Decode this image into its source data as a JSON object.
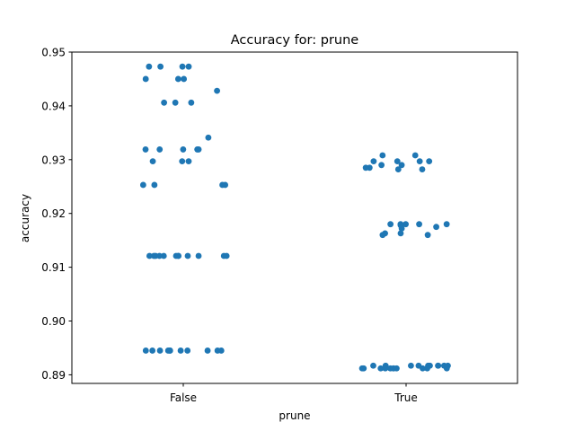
{
  "chart_data": {
    "type": "scatter",
    "title": "Accuracy for: prune",
    "xlabel": "prune",
    "ylabel": "accuracy",
    "categories": [
      "False",
      "True"
    ],
    "ylim": [
      0.8884,
      0.95
    ],
    "yticks": [
      0.89,
      0.9,
      0.91,
      0.92,
      0.93,
      0.94,
      0.95
    ],
    "ytick_labels": [
      "0.89",
      "0.90",
      "0.91",
      "0.92",
      "0.93",
      "0.94",
      "0.95"
    ],
    "grid": false,
    "marker_color": "#1f77b4",
    "series": [
      {
        "category": "False",
        "values": [
          0.9473,
          0.9473,
          0.9473,
          0.9473,
          0.945,
          0.945,
          0.945,
          0.9428,
          0.9406,
          0.9406,
          0.9406,
          0.9341,
          0.9319,
          0.9319,
          0.9319,
          0.9319,
          0.9319,
          0.9297,
          0.9297,
          0.9297,
          0.9253,
          0.9253,
          0.9253,
          0.9253,
          0.9121,
          0.9121,
          0.9121,
          0.9121,
          0.9121,
          0.9121,
          0.9121,
          0.9121,
          0.9121,
          0.9121,
          0.9121,
          0.9121,
          0.8945,
          0.8945,
          0.8945,
          0.8945,
          0.8945,
          0.8945,
          0.8945,
          0.8945,
          0.8945,
          0.8945,
          0.8945
        ]
      },
      {
        "category": "True",
        "values": [
          0.9308,
          0.9308,
          0.9297,
          0.9297,
          0.9297,
          0.9297,
          0.929,
          0.929,
          0.9285,
          0.9285,
          0.9282,
          0.9282,
          0.918,
          0.918,
          0.918,
          0.918,
          0.918,
          0.9178,
          0.9175,
          0.9172,
          0.9163,
          0.9163,
          0.916,
          0.916,
          0.8917,
          0.8917,
          0.8917,
          0.8917,
          0.8917,
          0.8917,
          0.8917,
          0.8917,
          0.8917,
          0.8917,
          0.8912,
          0.8912,
          0.8912,
          0.8912,
          0.8912,
          0.8912,
          0.8912,
          0.8912,
          0.8912,
          0.8912,
          0.8912
        ]
      }
    ]
  }
}
